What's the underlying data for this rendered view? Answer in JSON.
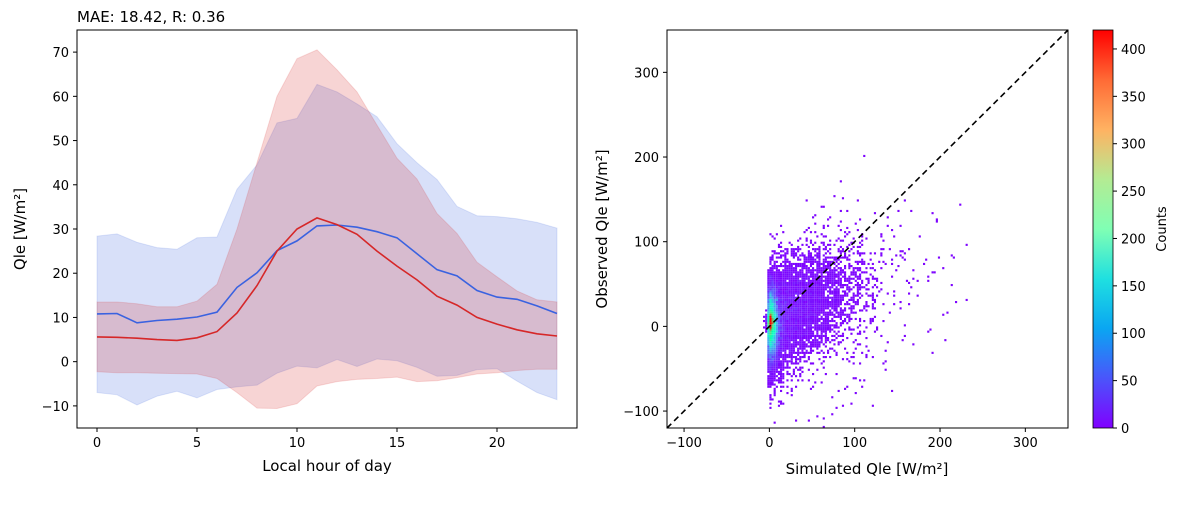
{
  "chart_data": [
    {
      "type": "line",
      "title": "MAE: 18.42, R: 0.36",
      "xlabel": "Local hour of day",
      "ylabel": "Qle [W/m²]",
      "xlim": [
        -1,
        24
      ],
      "ylim": [
        -15,
        75
      ],
      "xticks": [
        0,
        5,
        10,
        15,
        20
      ],
      "yticks": [
        -10,
        0,
        10,
        20,
        30,
        40,
        50,
        60,
        70
      ],
      "x": [
        0,
        1,
        2,
        3,
        4,
        5,
        6,
        7,
        8,
        9,
        10,
        11,
        12,
        13,
        14,
        15,
        16,
        17,
        18,
        19,
        20,
        21,
        22,
        23
      ],
      "series": [
        {
          "color": "#3a62e0",
          "band_alpha": 0.2,
          "values": [
            10.8,
            10.9,
            8.8,
            9.3,
            9.6,
            10.1,
            11.2,
            16.8,
            20.1,
            25.1,
            27.3,
            30.7,
            30.9,
            30.4,
            29.4,
            28.0,
            24.4,
            20.8,
            19.4,
            16.1,
            14.6,
            14.1,
            12.6,
            10.9
          ],
          "upper": [
            28.4,
            28.9,
            27.0,
            25.8,
            25.4,
            28.0,
            28.2,
            39.0,
            44.5,
            54.0,
            55.0,
            62.7,
            61.0,
            58.3,
            55.4,
            49.3,
            45.0,
            41.2,
            35.1,
            33.0,
            32.8,
            32.3,
            31.5,
            30.2
          ],
          "lower": [
            -7.0,
            -7.5,
            -9.8,
            -7.8,
            -6.7,
            -8.2,
            -6.3,
            -5.7,
            -5.3,
            -2.6,
            -1.0,
            -1.4,
            0.5,
            -1.1,
            0.6,
            0.2,
            -1.3,
            -3.3,
            -3.1,
            -1.8,
            -1.6,
            -4.4,
            -7.0,
            -8.6
          ]
        },
        {
          "color": "#d62728",
          "band_alpha": 0.2,
          "values": [
            5.6,
            5.5,
            5.3,
            5.0,
            4.8,
            5.4,
            6.8,
            11.0,
            17.2,
            25.0,
            30.0,
            32.5,
            31.0,
            28.8,
            25.0,
            21.6,
            18.5,
            14.8,
            12.8,
            10.0,
            8.5,
            7.2,
            6.3,
            5.8
          ],
          "upper": [
            13.5,
            13.5,
            13.1,
            12.4,
            12.4,
            13.7,
            17.5,
            30.0,
            45.0,
            60.0,
            68.5,
            70.5,
            66.0,
            61.0,
            53.5,
            46.0,
            41.3,
            33.5,
            29.0,
            22.5,
            19.2,
            16.0,
            14.0,
            13.5
          ],
          "lower": [
            -2.3,
            -2.5,
            -2.5,
            -2.6,
            -2.7,
            -2.8,
            -3.8,
            -7.0,
            -10.5,
            -10.6,
            -9.5,
            -5.5,
            -4.5,
            -4.0,
            -3.8,
            -3.5,
            -4.5,
            -4.3,
            -3.6,
            -2.8,
            -2.5,
            -2.0,
            -1.7,
            -1.7
          ]
        }
      ]
    },
    {
      "type": "heatmap",
      "xlabel": "Simulated Qle [W/m²]",
      "ylabel": "Observed Qle [W/m²]",
      "xlim": [
        -120,
        350
      ],
      "ylim": [
        -120,
        350
      ],
      "xticks": [
        -100,
        0,
        100,
        200,
        300
      ],
      "yticks": [
        -100,
        0,
        100,
        200,
        300
      ],
      "reference_line": "1:1 dashed black",
      "colorbar": {
        "label": "Counts",
        "colormap": "rainbow",
        "range": [
          0,
          420
        ],
        "ticks": [
          0,
          50,
          100,
          150,
          200,
          250,
          300,
          350,
          400
        ]
      }
    }
  ]
}
